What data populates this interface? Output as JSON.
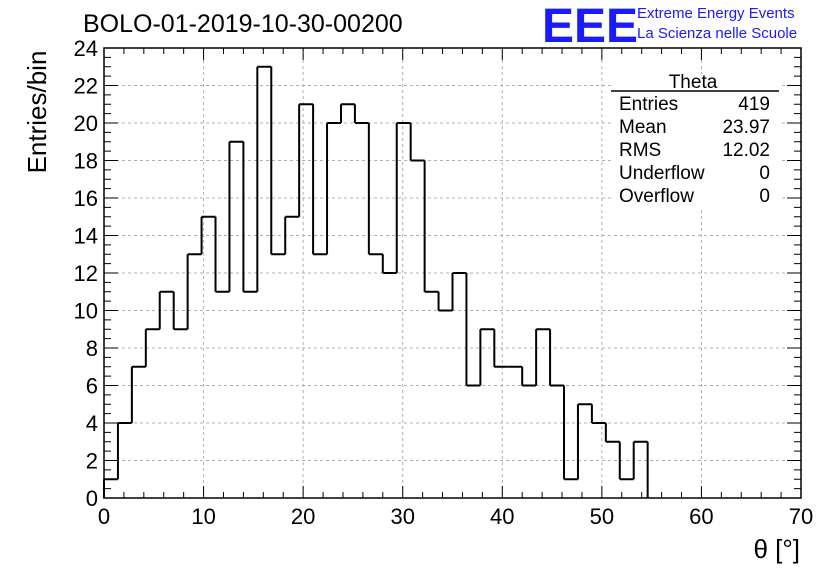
{
  "title": "BOLO-01-2019-10-30-00200",
  "logo": {
    "mark": "EEE",
    "line1": "Extreme Energy Events",
    "line2": "La Scienza nelle Scuole",
    "color": "#1a1aff"
  },
  "chart_data": {
    "type": "bar",
    "histogram": true,
    "title": "BOLO-01-2019-10-30-00200",
    "xlabel": "θ [°]",
    "ylabel": "Entries/bin",
    "xlim": [
      0,
      70
    ],
    "ylim": [
      0,
      24
    ],
    "bin_width": 1.4,
    "x_ticks": [
      0,
      10,
      20,
      30,
      40,
      50,
      60,
      70
    ],
    "y_ticks": [
      0,
      2,
      4,
      6,
      8,
      10,
      12,
      14,
      16,
      18,
      20,
      22,
      24
    ],
    "grid": true,
    "values": [
      1,
      4,
      7,
      9,
      11,
      9,
      13,
      15,
      11,
      19,
      11,
      23,
      13,
      15,
      21,
      13,
      20,
      21,
      20,
      13,
      12,
      20,
      18,
      11,
      10,
      12,
      6,
      9,
      7,
      7,
      6,
      9,
      6,
      1,
      5,
      4,
      3,
      1,
      3,
      0,
      0,
      0,
      0,
      0,
      0,
      0,
      0,
      0,
      0,
      0
    ],
    "line_color": "#000000"
  },
  "stats": {
    "title": "Theta",
    "rows": [
      {
        "label": "Entries",
        "value": "419"
      },
      {
        "label": "Mean",
        "value": "23.97"
      },
      {
        "label": "RMS",
        "value": "12.02"
      },
      {
        "label": "Underflow",
        "value": "0"
      },
      {
        "label": "Overflow",
        "value": "0"
      }
    ]
  }
}
